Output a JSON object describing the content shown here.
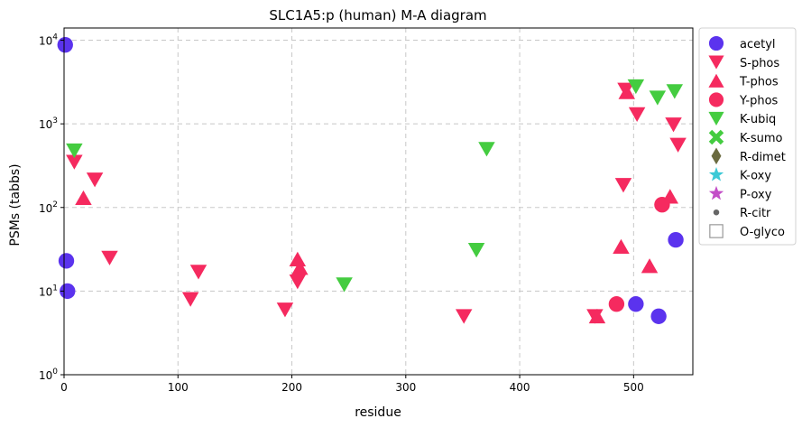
{
  "chart_data": {
    "type": "scatter",
    "title": "SLC1A5:p (human) M-A diagram",
    "xlabel": "residue",
    "ylabel": "PSMs (tabbs)",
    "xlim": [
      0,
      552
    ],
    "ylim": [
      1,
      14000
    ],
    "yscale": "log",
    "grid": true,
    "legend_position": "outside-right",
    "x_ticks": [
      0,
      100,
      200,
      300,
      400,
      500
    ],
    "y_ticks": [
      {
        "value": 1,
        "base": "10",
        "exp": "0"
      },
      {
        "value": 10,
        "base": "10",
        "exp": "1"
      },
      {
        "value": 100,
        "base": "10",
        "exp": "2"
      },
      {
        "value": 1000,
        "base": "10",
        "exp": "3"
      },
      {
        "value": 10000,
        "base": "10",
        "exp": "4"
      }
    ],
    "series": [
      {
        "name": "acetyl",
        "marker": "circle",
        "color": "#5b33ee",
        "points": [
          [
            1,
            8800
          ],
          [
            2,
            23
          ],
          [
            3,
            10
          ],
          [
            502,
            7
          ],
          [
            522,
            5
          ],
          [
            537,
            41
          ]
        ]
      },
      {
        "name": "S-phos",
        "marker": "triangle-down",
        "color": "#f52a5f",
        "points": [
          [
            9,
            350
          ],
          [
            27,
            215
          ],
          [
            40,
            25
          ],
          [
            111,
            8
          ],
          [
            118,
            17
          ],
          [
            194,
            6
          ],
          [
            205,
            13
          ],
          [
            351,
            5
          ],
          [
            466,
            5
          ],
          [
            491,
            185
          ],
          [
            493,
            2550
          ],
          [
            503,
            1300
          ],
          [
            535,
            980
          ],
          [
            539,
            560
          ]
        ]
      },
      {
        "name": "T-phos",
        "marker": "triangle-up",
        "color": "#f52a5f",
        "points": [
          [
            17,
            130
          ],
          [
            205,
            24
          ],
          [
            207,
            19
          ],
          [
            468,
            5
          ],
          [
            489,
            34
          ],
          [
            494,
            2400
          ],
          [
            514,
            20
          ],
          [
            532,
            135
          ]
        ]
      },
      {
        "name": "Y-phos",
        "marker": "circle",
        "color": "#f52a5f",
        "points": [
          [
            485,
            7
          ],
          [
            525,
            108
          ]
        ]
      },
      {
        "name": "K-ubiq",
        "marker": "triangle-down",
        "color": "#44cc40",
        "points": [
          [
            9,
            480
          ],
          [
            246,
            12
          ],
          [
            362,
            31
          ],
          [
            371,
            500
          ],
          [
            502,
            2800
          ],
          [
            521,
            2050
          ],
          [
            536,
            2450
          ]
        ]
      },
      {
        "name": "K-sumo",
        "marker": "x",
        "color": "#44cc40",
        "points": []
      },
      {
        "name": "R-dimet",
        "marker": "diamond",
        "color": "#6b6b40",
        "points": []
      },
      {
        "name": "K-oxy",
        "marker": "star",
        "color": "#3cc9d6",
        "points": []
      },
      {
        "name": "P-oxy",
        "marker": "star",
        "color": "#c34ec7",
        "points": []
      },
      {
        "name": "R-citr",
        "marker": "dot",
        "color": "#666666",
        "points": []
      },
      {
        "name": "O-glyco",
        "marker": "square-open",
        "color": "#999999",
        "points": []
      }
    ]
  }
}
